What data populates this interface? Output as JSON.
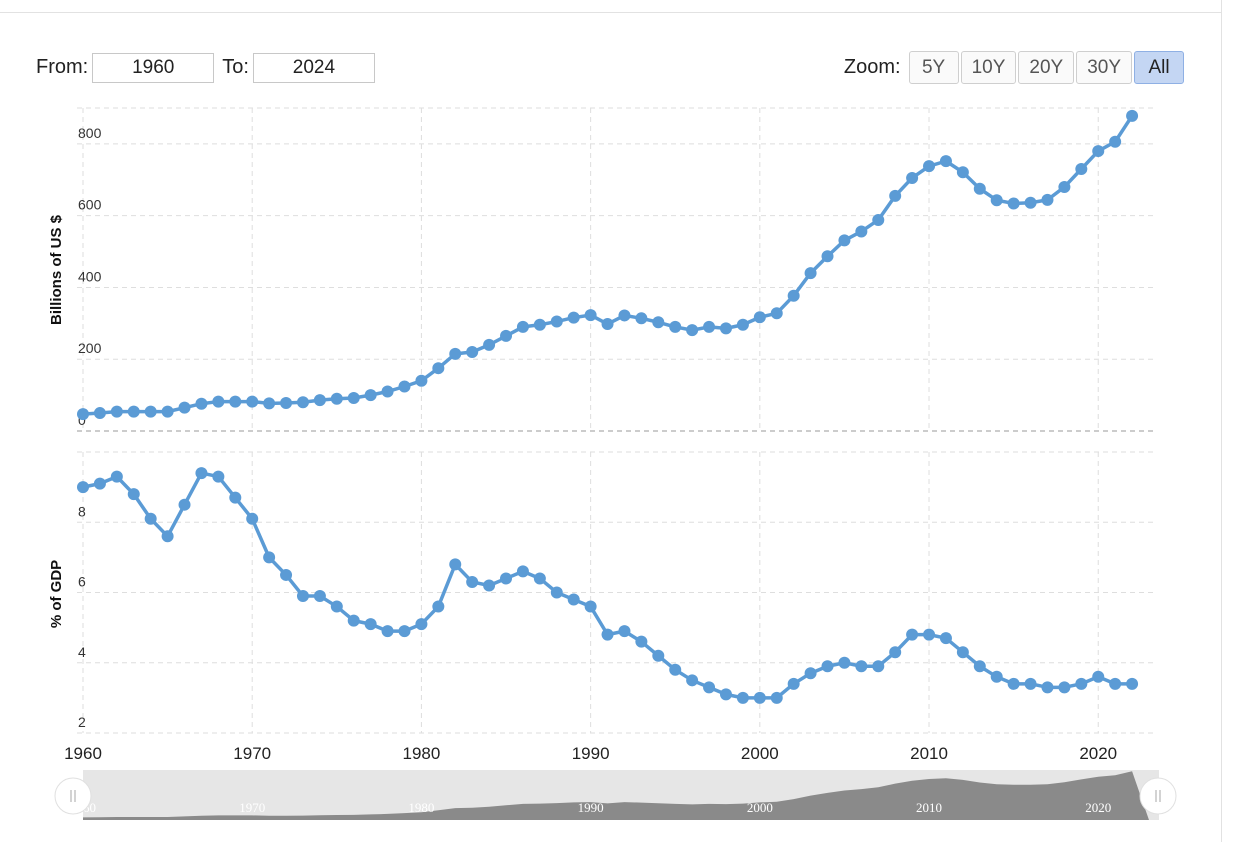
{
  "controls": {
    "from_label": "From:",
    "from_value": "1960",
    "to_label": "To:",
    "to_value": "2024",
    "zoom_label": "Zoom:",
    "zoom_buttons": [
      "5Y",
      "10Y",
      "20Y",
      "30Y",
      "All"
    ],
    "active_zoom": "All"
  },
  "colors": {
    "series": "#5b9bd5",
    "grid": "#dedede",
    "navigator_fill": "#8a8a8a",
    "navigator_bg": "#e6e6e6",
    "active_button": "#c4d6f3"
  },
  "icons": {
    "navigator_handle": "grip-handle-icon"
  },
  "navigator": {
    "tick_labels": [
      "1960",
      "1970",
      "1980",
      "1990",
      "2000",
      "2010",
      "2020"
    ]
  },
  "chart_data": [
    {
      "type": "line",
      "title": "",
      "xlabel": "",
      "ylabel": "Billions of US $",
      "ylim": [
        0,
        900
      ],
      "y_ticks": [
        0,
        200,
        400,
        600,
        800
      ],
      "x_ticks": [
        1960,
        1970,
        1980,
        1990,
        2000,
        2010,
        2020
      ],
      "x_range": [
        1960,
        2023
      ],
      "grid": true,
      "x": [
        1960,
        1961,
        1962,
        1963,
        1964,
        1965,
        1966,
        1967,
        1968,
        1969,
        1970,
        1971,
        1972,
        1973,
        1974,
        1975,
        1976,
        1977,
        1978,
        1979,
        1980,
        1981,
        1982,
        1983,
        1984,
        1985,
        1986,
        1987,
        1988,
        1989,
        1990,
        1991,
        1992,
        1993,
        1994,
        1995,
        1996,
        1997,
        1998,
        1999,
        2000,
        2001,
        2002,
        2003,
        2004,
        2005,
        2006,
        2007,
        2008,
        2009,
        2010,
        2011,
        2012,
        2013,
        2014,
        2015,
        2016,
        2017,
        2018,
        2019,
        2020,
        2021,
        2022
      ],
      "series": [
        {
          "values": [
            47,
            50,
            54,
            54,
            54,
            54,
            65,
            76,
            82,
            82,
            82,
            77,
            78,
            80,
            86,
            90,
            92,
            100,
            110,
            124,
            140,
            175,
            215,
            220,
            240,
            265,
            290,
            296,
            305,
            316,
            323,
            298,
            322,
            314,
            303,
            290,
            281,
            290,
            286,
            296,
            317,
            328,
            377,
            440,
            487,
            531,
            556,
            588,
            655,
            705,
            738,
            752,
            721,
            675,
            643,
            634,
            636,
            644,
            680,
            730,
            780,
            806,
            878
          ]
        }
      ]
    },
    {
      "type": "line",
      "title": "",
      "xlabel": "",
      "ylabel": "% of GDP",
      "ylim": [
        2,
        10
      ],
      "y_ticks": [
        2,
        4,
        6,
        8
      ],
      "x_ticks": [
        1960,
        1970,
        1980,
        1990,
        2000,
        2010,
        2020
      ],
      "x_range": [
        1960,
        2023
      ],
      "grid": true,
      "x": [
        1960,
        1961,
        1962,
        1963,
        1964,
        1965,
        1966,
        1967,
        1968,
        1969,
        1970,
        1971,
        1972,
        1973,
        1974,
        1975,
        1976,
        1977,
        1978,
        1979,
        1980,
        1981,
        1982,
        1983,
        1984,
        1985,
        1986,
        1987,
        1988,
        1989,
        1990,
        1991,
        1992,
        1993,
        1994,
        1995,
        1996,
        1997,
        1998,
        1999,
        2000,
        2001,
        2002,
        2003,
        2004,
        2005,
        2006,
        2007,
        2008,
        2009,
        2010,
        2011,
        2012,
        2013,
        2014,
        2015,
        2016,
        2017,
        2018,
        2019,
        2020,
        2021,
        2022
      ],
      "series": [
        {
          "values": [
            9.0,
            9.1,
            9.3,
            8.8,
            8.1,
            7.6,
            8.5,
            9.4,
            9.3,
            8.7,
            8.1,
            7.0,
            6.5,
            5.9,
            5.9,
            5.6,
            5.2,
            5.1,
            4.9,
            4.9,
            5.1,
            5.6,
            6.8,
            6.3,
            6.2,
            6.4,
            6.6,
            6.4,
            6.0,
            5.8,
            5.6,
            4.8,
            4.9,
            4.6,
            4.2,
            3.8,
            3.5,
            3.3,
            3.1,
            3.0,
            3.0,
            3.0,
            3.4,
            3.7,
            3.9,
            4.0,
            3.9,
            3.9,
            4.3,
            4.8,
            4.8,
            4.7,
            4.3,
            3.9,
            3.6,
            3.4,
            3.4,
            3.3,
            3.3,
            3.4,
            3.6,
            3.4,
            3.4
          ]
        }
      ]
    }
  ]
}
